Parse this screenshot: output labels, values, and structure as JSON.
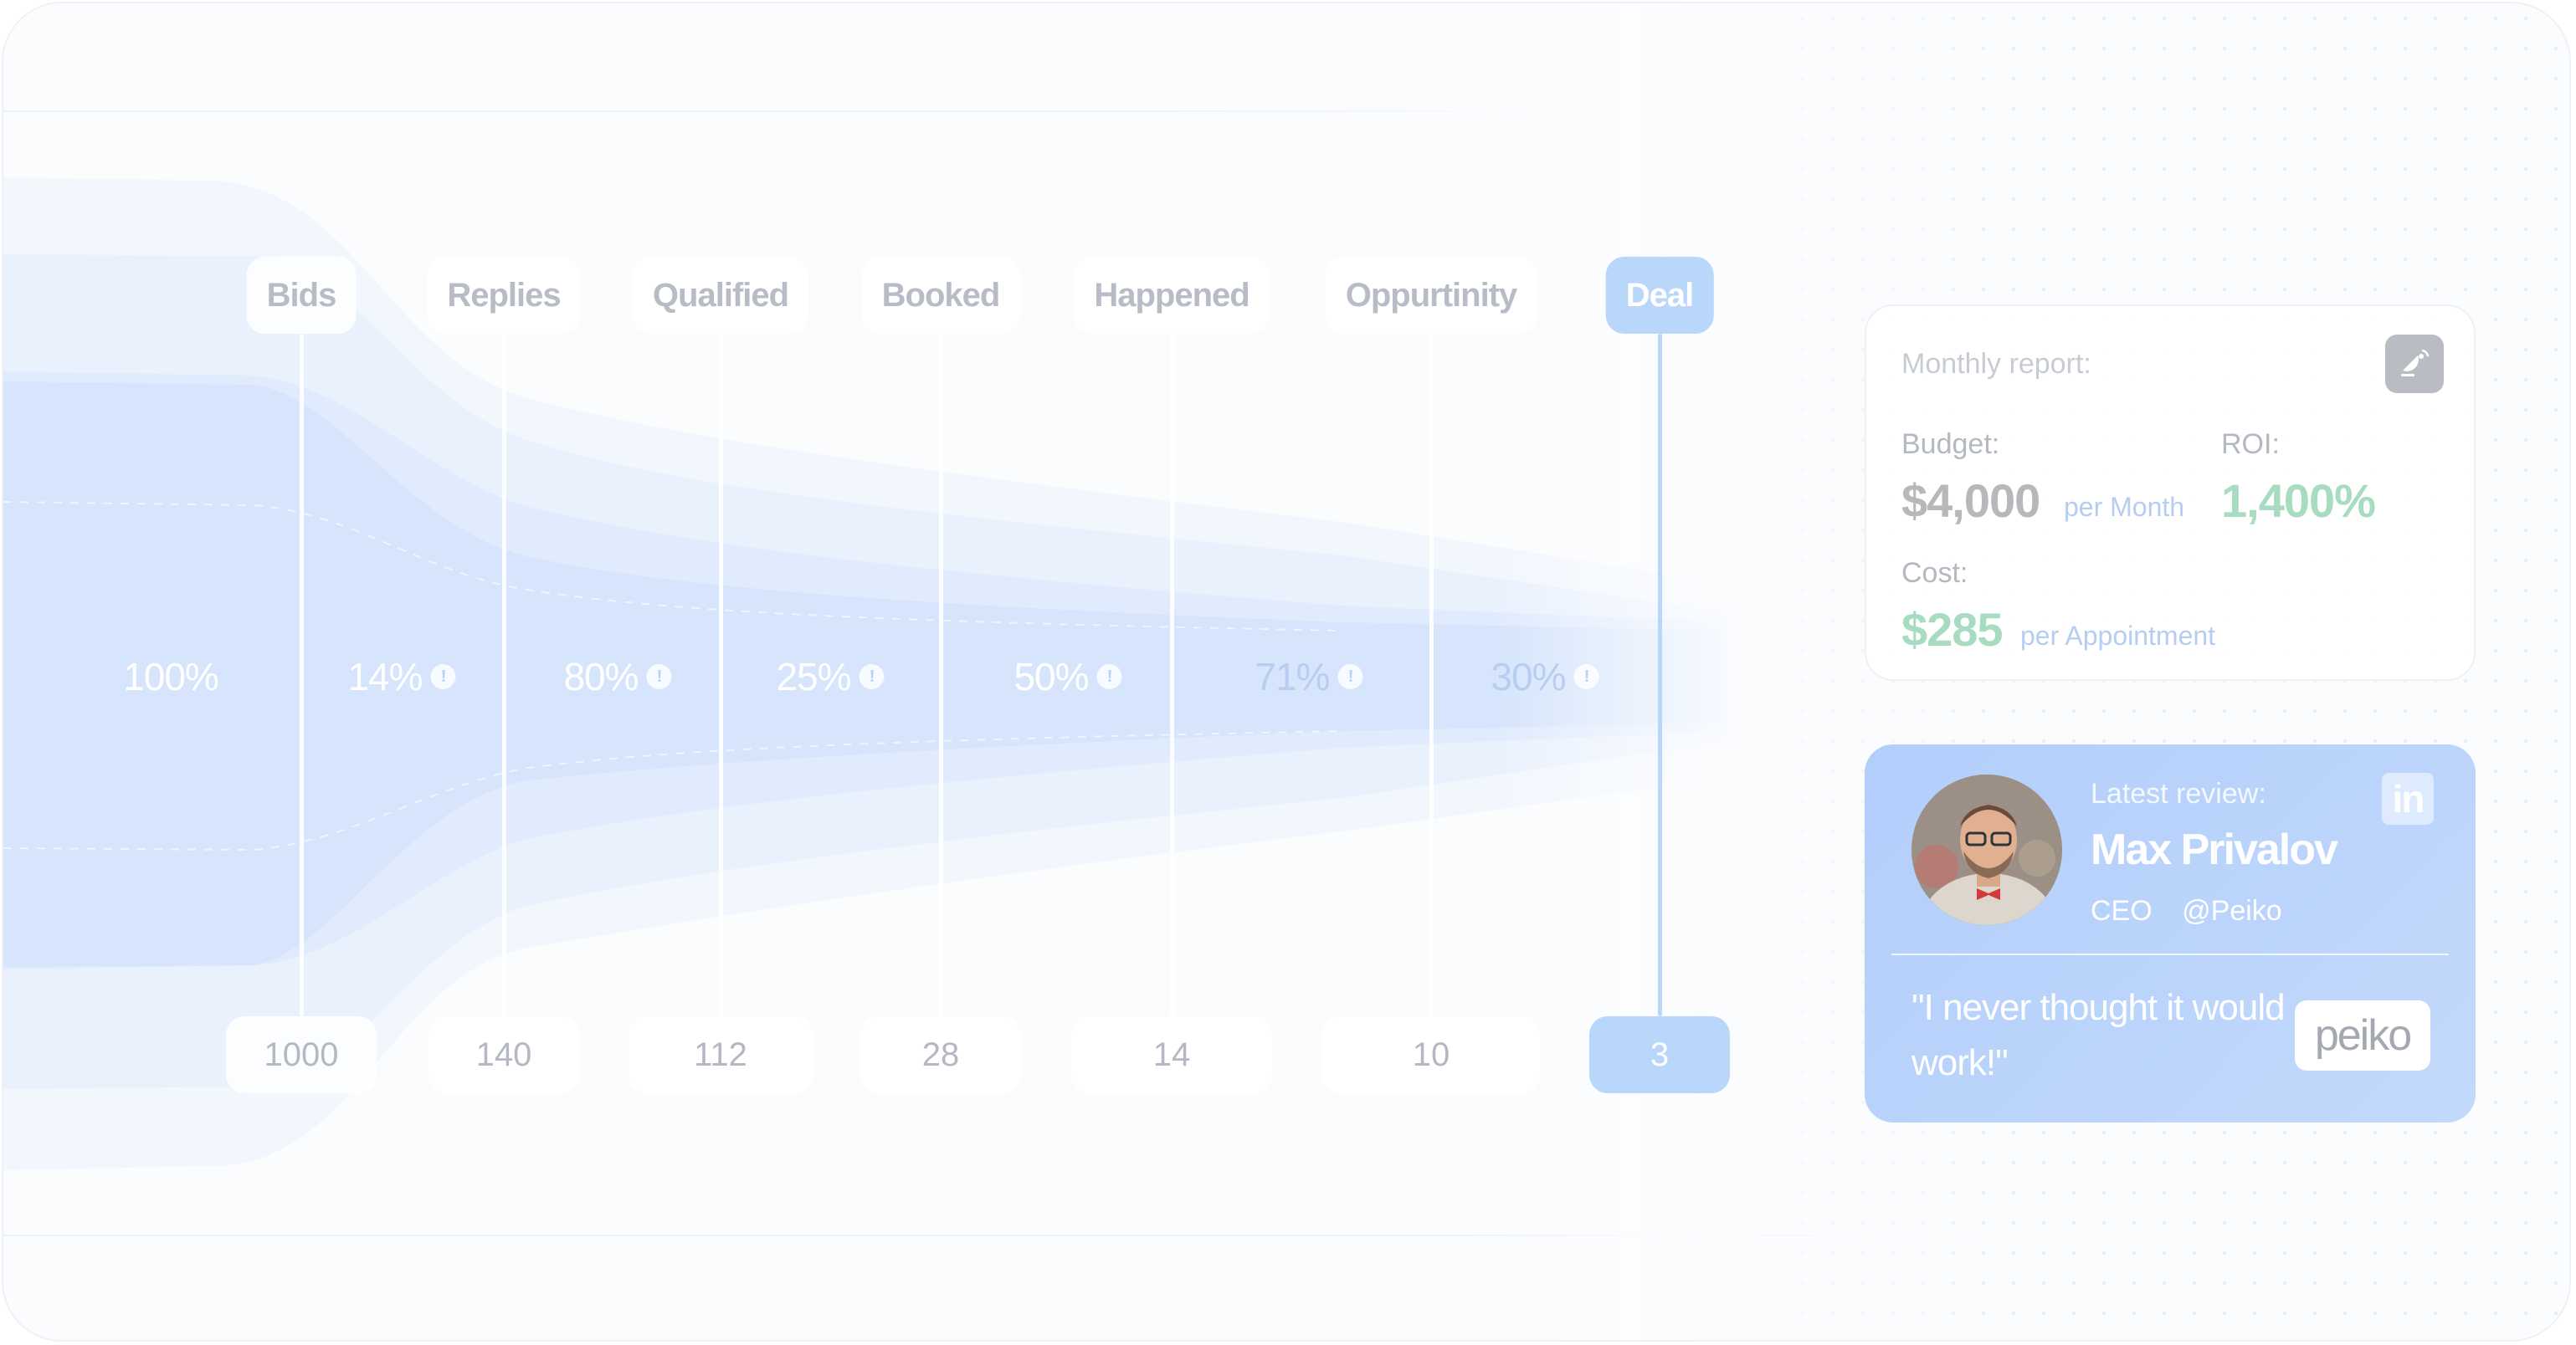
{
  "funnel": {
    "stages": [
      {
        "label": "Bids",
        "count": "1000",
        "rate": "100%"
      },
      {
        "label": "Replies",
        "count": "140",
        "rate": "14%"
      },
      {
        "label": "Qualified",
        "count": "112",
        "rate": "80%"
      },
      {
        "label": "Booked",
        "count": "28",
        "rate": "25%"
      },
      {
        "label": "Happened",
        "count": "14",
        "rate": "50%"
      },
      {
        "label": "Oppurtinity",
        "count": "10",
        "rate": "71%"
      },
      {
        "label": "Deal",
        "count": "3",
        "rate": "30%"
      }
    ],
    "info_glyph": "!",
    "highlight_stage": "Deal",
    "colors": {
      "highlight": "#b9d6fb",
      "band": "#dce9fd"
    }
  },
  "report": {
    "title": "Monthly report:",
    "budget_label": "Budget:",
    "budget_value": "$4,000",
    "budget_unit": "per Month",
    "roi_label": "ROI:",
    "roi_value": "1,400%",
    "cost_label": "Cost:",
    "cost_value": "$285",
    "cost_unit": "per Appointment",
    "icon": "satellite-icon",
    "colors": {
      "value": "#b8b8bc",
      "positive": "#a7dcc0"
    }
  },
  "review": {
    "label": "Latest review:",
    "name": "Max Privalov",
    "role": "CEO",
    "handle": "@Peiko",
    "quote": "\"I never thought it would work!\"",
    "social_icon": "linkedin-icon",
    "social_text": "in",
    "brand": "peiko"
  }
}
